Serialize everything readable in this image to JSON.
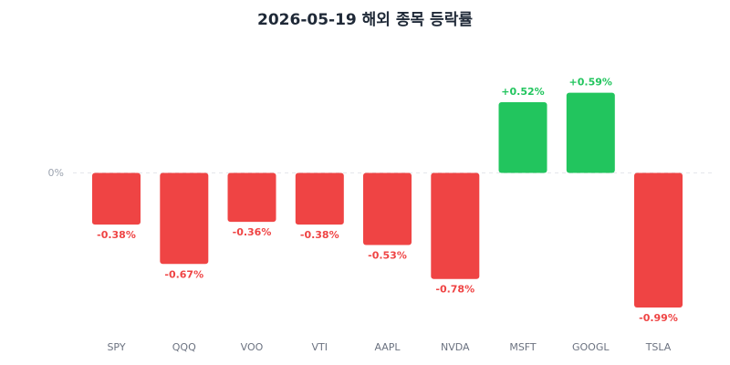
{
  "chart_data": {
    "type": "bar",
    "title": "2026-05-19 해외 종목 등락률",
    "categories": [
      "SPY",
      "QQQ",
      "VOO",
      "VTI",
      "AAPL",
      "NVDA",
      "MSFT",
      "GOOGL",
      "TSLA"
    ],
    "values": [
      -0.38,
      -0.67,
      -0.36,
      -0.38,
      -0.53,
      -0.78,
      0.52,
      0.59,
      -0.99
    ],
    "value_labels": [
      "-0.38%",
      "-0.67%",
      "-0.36%",
      "-0.38%",
      "-0.53%",
      "-0.78%",
      "+0.52%",
      "+0.59%",
      "-0.99%"
    ],
    "zero_label": "0%",
    "ylim": [
      -0.99,
      0.59
    ],
    "grid": false,
    "zero_line": "dashed",
    "colors": {
      "positive": "#22c55e",
      "negative": "#ef4444",
      "title": "#1f2937",
      "axis": "#9ca3af",
      "zero_line": "#e5e7eb"
    }
  }
}
